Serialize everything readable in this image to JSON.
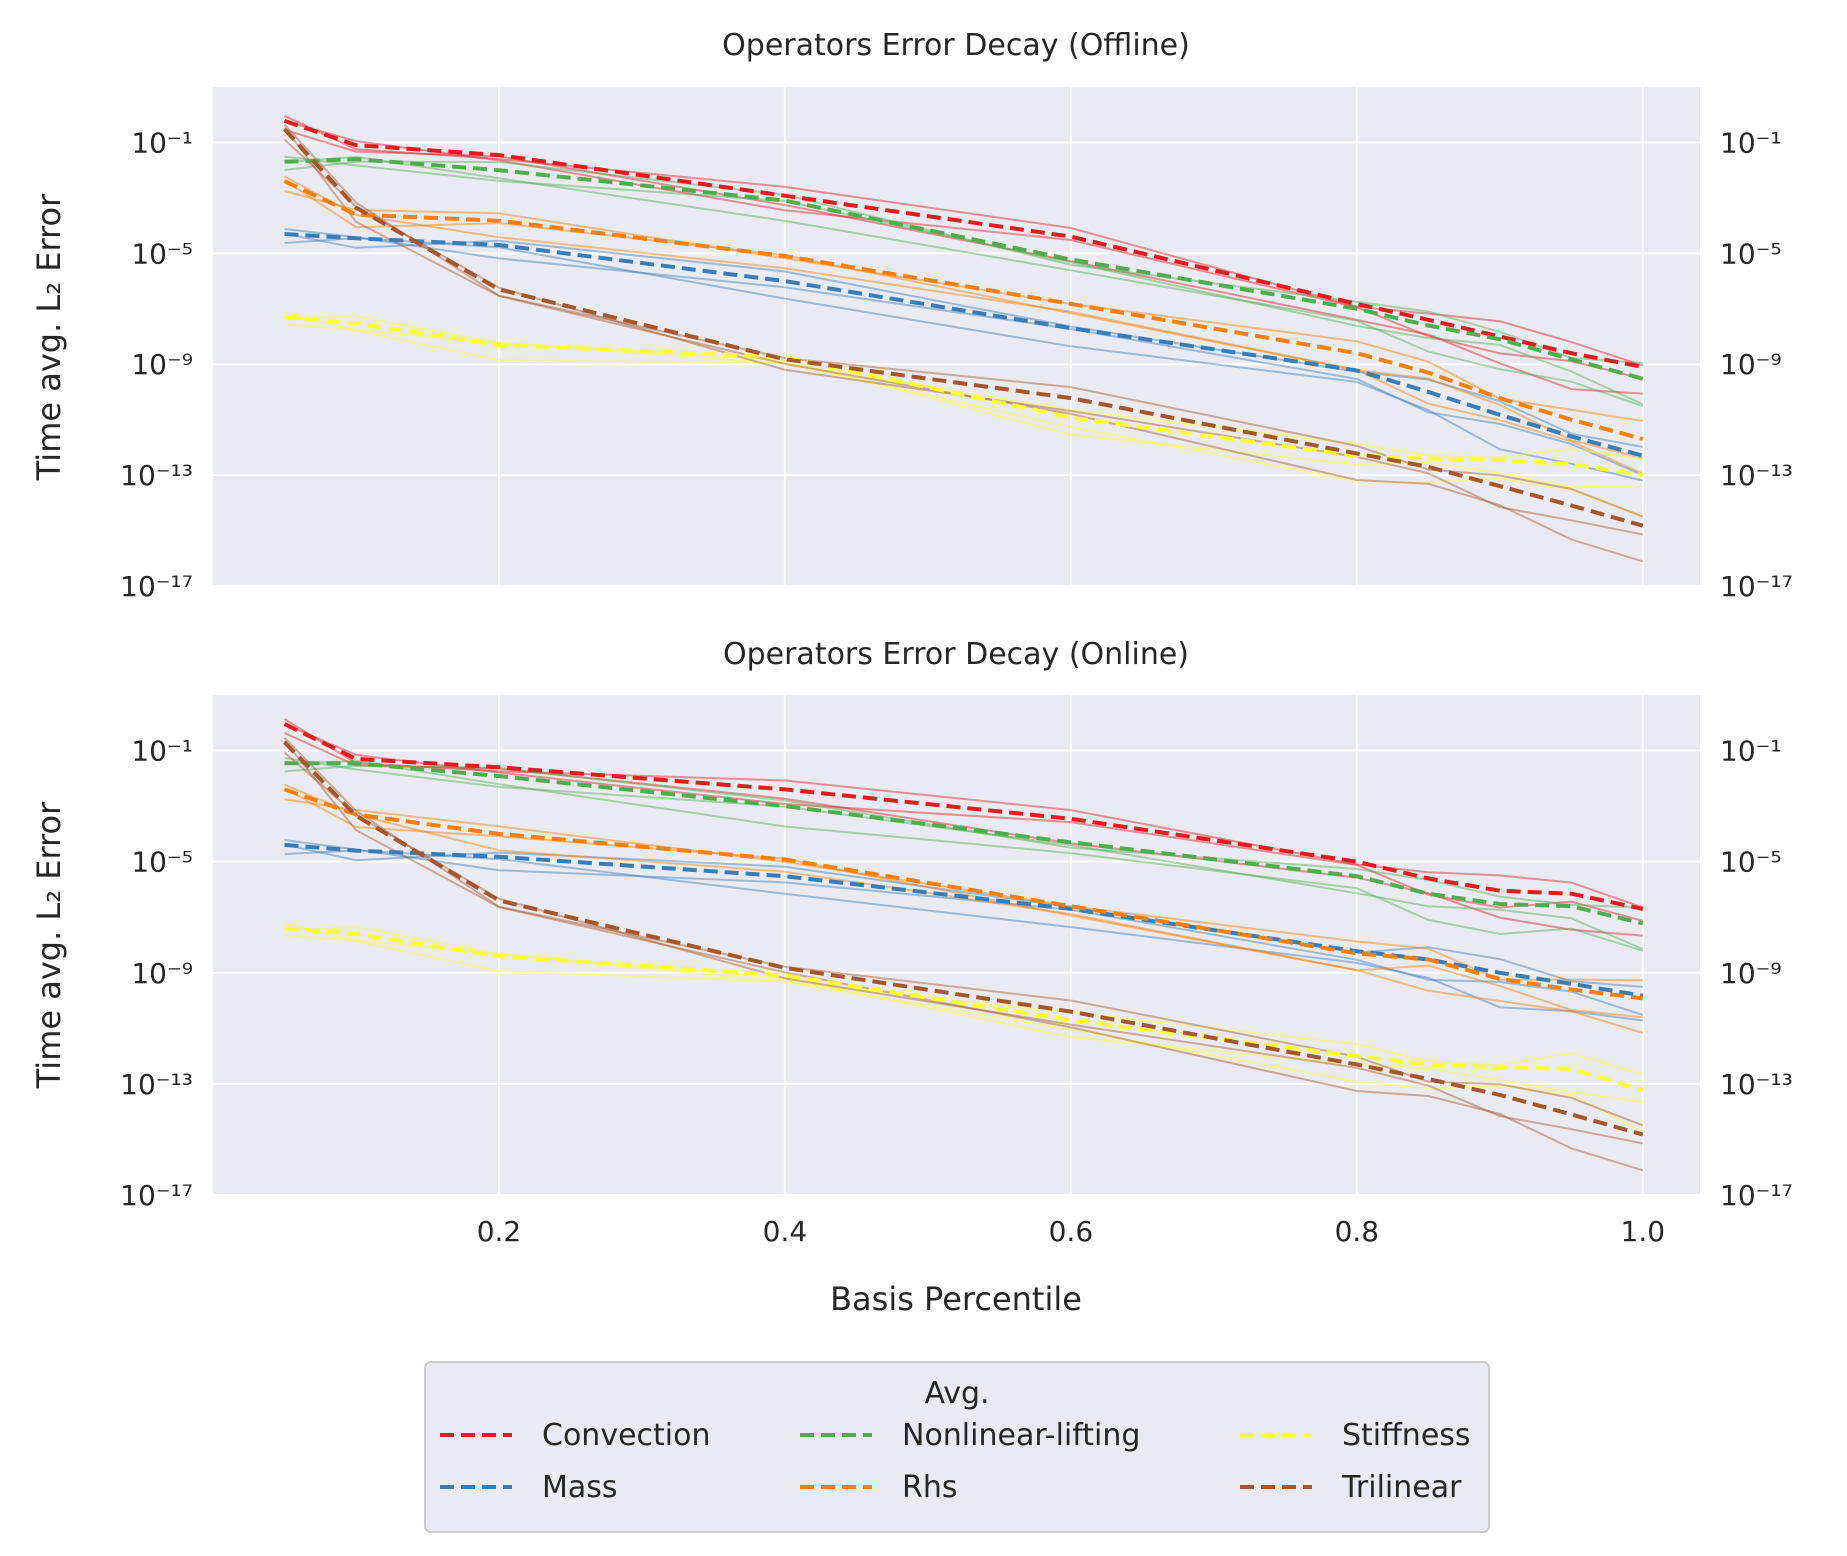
{
  "chart_data": [
    {
      "type": "line",
      "title": "Operators Error Decay (Offline)",
      "xlabel": "",
      "ylabel": "Time avg. L₂ Error",
      "yscale": "log",
      "ylim": [
        1e-17,
        10
      ],
      "xlim": [
        0.0,
        1.04
      ],
      "xticks": [],
      "yticks": [
        "10⁻¹",
        "10⁻⁵",
        "10⁻⁹",
        "10⁻¹³",
        "10⁻¹⁷"
      ],
      "grid": true,
      "x": [
        0.05,
        0.1,
        0.2,
        0.4,
        0.6,
        0.8,
        0.85,
        0.9,
        0.95,
        1.0
      ],
      "series": [
        {
          "name": "Convection",
          "color": "#e41a1c",
          "style": "dashed",
          "values": [
            0.6,
            0.08,
            0.035,
            0.0012,
            4e-05,
            1.5e-07,
            4e-08,
            1e-08,
            2.5e-09,
            8e-10
          ]
        },
        {
          "name": "Mass",
          "color": "#377eb8",
          "style": "dashed",
          "values": [
            5e-05,
            3.5e-05,
            2e-05,
            1e-06,
            2e-08,
            6e-10,
            1e-10,
            1.5e-11,
            2.5e-12,
            5e-13
          ]
        },
        {
          "name": "Nonlinear-lifting",
          "color": "#4daf4a",
          "style": "dashed",
          "values": [
            0.02,
            0.025,
            0.01,
            0.0008,
            6e-06,
            1e-07,
            2.5e-08,
            8e-09,
            1.5e-09,
            3e-10
          ]
        },
        {
          "name": "Rhs",
          "color": "#ff7f00",
          "style": "dashed",
          "values": [
            0.004,
            0.00025,
            0.00015,
            8e-06,
            1.5e-07,
            2.5e-09,
            5e-10,
            6e-11,
            1e-11,
            2e-12
          ]
        },
        {
          "name": "Stiffness",
          "color": "#ffff33",
          "style": "dashed",
          "values": [
            5e-08,
            3e-08,
            5e-09,
            1.8e-09,
            1.2e-11,
            5e-13,
            4e-13,
            3.5e-13,
            2.5e-13,
            1e-13
          ]
        },
        {
          "name": "Trilinear",
          "color": "#a65628",
          "style": "dashed",
          "values": [
            0.3,
            0.00045,
            5e-07,
            1.5e-09,
            6e-11,
            6e-13,
            2e-13,
            4e-14,
            8e-15,
            1.5e-15
          ]
        }
      ]
    },
    {
      "type": "line",
      "title": "Operators Error Decay (Online)",
      "xlabel": "Basis Percentile",
      "ylabel": "Time avg. L₂ Error",
      "yscale": "log",
      "ylim": [
        1e-17,
        10
      ],
      "xlim": [
        0.0,
        1.04
      ],
      "xticks": [
        "0.2",
        "0.4",
        "0.6",
        "0.8",
        "1.0"
      ],
      "yticks": [
        "10⁻¹",
        "10⁻⁵",
        "10⁻⁹",
        "10⁻¹³",
        "10⁻¹⁷"
      ],
      "grid": true,
      "x": [
        0.05,
        0.1,
        0.2,
        0.4,
        0.6,
        0.8,
        0.85,
        0.9,
        0.95,
        1.0
      ],
      "series": [
        {
          "name": "Convection",
          "color": "#e41a1c",
          "style": "dashed",
          "values": [
            0.9,
            0.05,
            0.025,
            0.004,
            0.00035,
            1e-05,
            2.5e-06,
            9e-07,
            7e-07,
            2e-07
          ]
        },
        {
          "name": "Mass",
          "color": "#377eb8",
          "style": "dashed",
          "values": [
            4e-05,
            2.5e-05,
            1.5e-05,
            3e-06,
            2e-07,
            6e-09,
            3e-09,
            1e-09,
            4e-10,
            1.5e-10
          ]
        },
        {
          "name": "Nonlinear-lifting",
          "color": "#4daf4a",
          "style": "dashed",
          "values": [
            0.035,
            0.035,
            0.012,
            0.001,
            5e-05,
            3e-06,
            7e-07,
            3e-07,
            2.5e-07,
            6e-08
          ]
        },
        {
          "name": "Rhs",
          "color": "#ff7f00",
          "style": "dashed",
          "values": [
            0.004,
            0.0005,
            0.0001,
            1.2e-05,
            2.5e-07,
            5e-09,
            3e-09,
            6e-10,
            2.5e-10,
            1.2e-10
          ]
        },
        {
          "name": "Stiffness",
          "color": "#ffff33",
          "style": "dashed",
          "values": [
            4e-08,
            2.5e-08,
            4e-09,
            8e-10,
            2e-11,
            1e-12,
            5e-13,
            4e-13,
            3.5e-13,
            6e-14
          ]
        },
        {
          "name": "Trilinear",
          "color": "#a65628",
          "style": "dashed",
          "values": [
            0.2,
            0.00045,
            4e-07,
            1.5e-09,
            4e-11,
            5e-13,
            1.5e-13,
            4e-14,
            8e-15,
            1.5e-15
          ]
        }
      ]
    }
  ],
  "legend": {
    "title": "Avg.",
    "placement": "bottom-center",
    "columns": 3,
    "entries": [
      "Convection",
      "Mass",
      "Nonlinear-lifting",
      "Rhs",
      "Stiffness",
      "Trilinear"
    ]
  }
}
